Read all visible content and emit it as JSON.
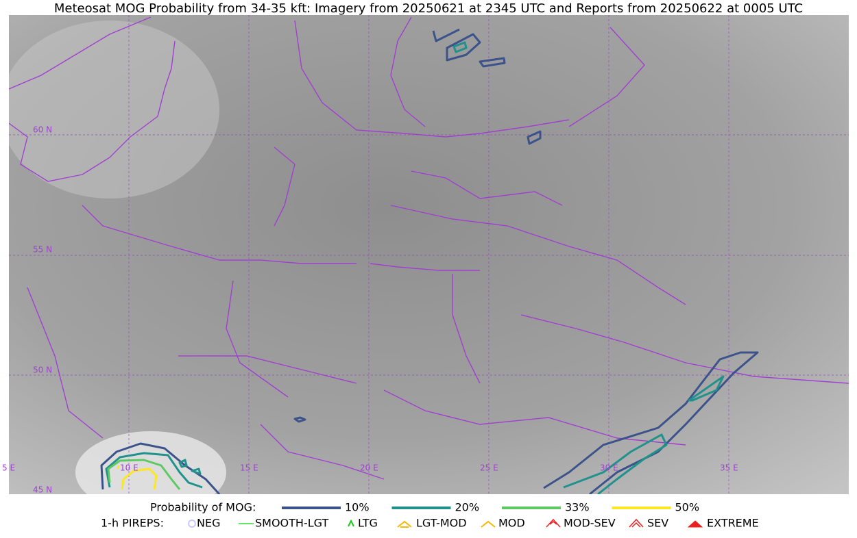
{
  "header": {
    "title": "Meteosat MOG Probability from 34-35 kft: Imagery from 20250621 at 2345 UTC and Reports from 20250622 at 0005 UTC"
  },
  "grid_labels": {
    "lat": [
      "60 N",
      "55 N",
      "50 N",
      "45 N"
    ],
    "lon": [
      "5 E",
      "10 E",
      "15 E",
      "20 E",
      "25 E",
      "30 E",
      "35 E"
    ]
  },
  "legend": {
    "probability_title": "Probability of MOG:",
    "probability": [
      {
        "label": "10%",
        "color": "#3b528b"
      },
      {
        "label": "20%",
        "color": "#21918c"
      },
      {
        "label": "33%",
        "color": "#5ec962"
      },
      {
        "label": "50%",
        "color": "#fde725"
      }
    ],
    "pireps_title": "1-h PIREPS:",
    "pireps": [
      {
        "label": "NEG",
        "color": "#c8c8ff"
      },
      {
        "label": "SMOOTH-LGT",
        "color": "#33dd33"
      },
      {
        "label": "LTG",
        "color": "#11cc11"
      },
      {
        "label": "LGT-MOD",
        "color": "#f5b800"
      },
      {
        "label": "MOD",
        "color": "#f5b800"
      },
      {
        "label": "MOD-SEV",
        "color": "#e82020"
      },
      {
        "label": "SEV",
        "color": "#e82020"
      },
      {
        "label": "EXTREME",
        "color": "#e82020"
      }
    ]
  }
}
